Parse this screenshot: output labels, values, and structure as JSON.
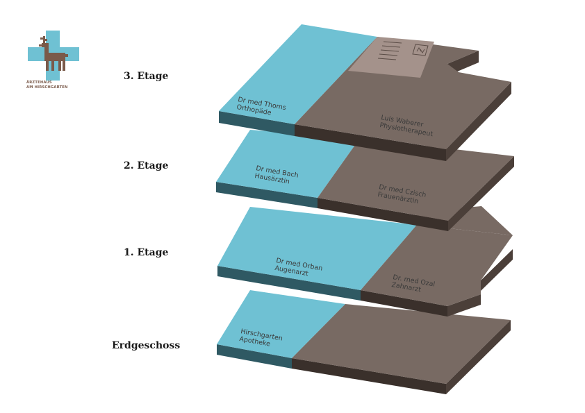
{
  "logo": {
    "line1": "ÄRZTEHAUS",
    "line2": "AM HIRSCHGARTEN"
  },
  "colors": {
    "accent": "#6fc1d3",
    "accent_side": "#2f5963",
    "practice": "#786a63",
    "practice_side": "#3a302b",
    "light": "#a4928b"
  },
  "floors": [
    {
      "label": "3. Etage",
      "rooms": [
        {
          "lines": [
            "Dr med Thoms",
            "Orthopäde"
          ]
        },
        {
          "lines": [
            "Luis Waberer",
            "Physiotherapeut"
          ]
        }
      ]
    },
    {
      "label": "2. Etage",
      "rooms": [
        {
          "lines": [
            "Dr med Bach",
            "Hausärztin"
          ]
        },
        {
          "lines": [
            "Dr med Czisch",
            "Frauenärztin"
          ]
        }
      ]
    },
    {
      "label": "1. Etage",
      "rooms": [
        {
          "lines": [
            "Dr med Orban",
            "Augenarzt"
          ]
        },
        {
          "lines": [
            "Dr. med Ozal",
            "Zahnarzt"
          ]
        }
      ]
    },
    {
      "label": "Erdgeschoss",
      "rooms": [
        {
          "lines": [
            "Hirschgarten",
            "Apotheke"
          ]
        }
      ]
    }
  ]
}
